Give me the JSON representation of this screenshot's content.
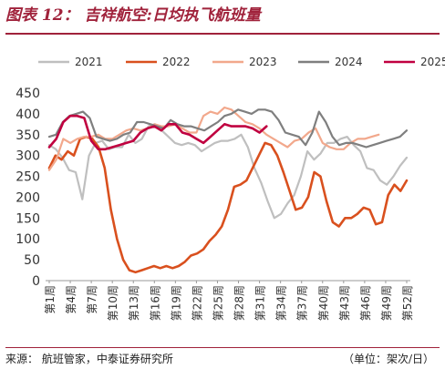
{
  "figure": {
    "title": "图表 12：  吉祥航空:日均执飞航班量",
    "source": "来源：  航班管家，中泰证券研究所",
    "unit": "（单位：架次/日）"
  },
  "colors": {
    "title": "#a0223b",
    "2021": "#bfbfbf",
    "2022": "#d9501e",
    "2023": "#f2a88c",
    "2024": "#7f7f7f",
    "2025": "#c00040"
  },
  "chart_data": {
    "type": "line",
    "x_labels": [
      "第1周",
      "第4周",
      "第7周",
      "第10周",
      "第13周",
      "第16周",
      "第19周",
      "第22周",
      "第25周",
      "第28周",
      "第31周",
      "第34周",
      "第37周",
      "第40周",
      "第43周",
      "第46周",
      "第49周",
      "第52周"
    ],
    "ylim": [
      0,
      450
    ],
    "yticks": [
      0,
      50,
      100,
      150,
      200,
      250,
      300,
      350,
      400,
      450
    ],
    "legend_position": "top",
    "series": [
      {
        "name": "2021",
        "key": "2021",
        "values": [
          325,
          315,
          295,
          265,
          260,
          195,
          300,
          330,
          335,
          315,
          320,
          320,
          350,
          330,
          340,
          370,
          375,
          360,
          345,
          330,
          325,
          330,
          325,
          310,
          320,
          330,
          335,
          335,
          340,
          350,
          320,
          270,
          235,
          190,
          150,
          160,
          185,
          205,
          250,
          310,
          290,
          305,
          330,
          330,
          340,
          345,
          325,
          310,
          270,
          265,
          240,
          230,
          250,
          275,
          295
        ]
      },
      {
        "name": "2022",
        "key": "2022",
        "values": [
          270,
          300,
          290,
          310,
          300,
          340,
          345,
          340,
          320,
          270,
          170,
          100,
          50,
          25,
          20,
          25,
          30,
          35,
          30,
          35,
          30,
          35,
          45,
          60,
          65,
          75,
          95,
          110,
          130,
          170,
          225,
          230,
          240,
          270,
          300,
          330,
          325,
          300,
          260,
          215,
          170,
          175,
          200,
          260,
          250,
          190,
          140,
          130,
          150,
          150,
          160,
          175,
          170,
          135,
          140,
          205,
          230,
          215,
          240
        ]
      },
      {
        "name": "2023",
        "key": "2023",
        "values": [
          265,
          290,
          340,
          330,
          340,
          345,
          345,
          350,
          340,
          340,
          350,
          360,
          365,
          360,
          365,
          375,
          370,
          370,
          375,
          365,
          355,
          355,
          395,
          405,
          400,
          415,
          410,
          395,
          380,
          375,
          365,
          350,
          340,
          330,
          320,
          335,
          340,
          355,
          365,
          330,
          320,
          315,
          315,
          330,
          340,
          340,
          345,
          350
        ]
      },
      {
        "name": "2024",
        "key": "2024",
        "values": [
          345,
          350,
          380,
          395,
          400,
          405,
          390,
          345,
          340,
          335,
          340,
          350,
          355,
          380,
          380,
          375,
          370,
          365,
          385,
          375,
          370,
          370,
          365,
          360,
          370,
          380,
          395,
          400,
          410,
          405,
          400,
          410,
          410,
          405,
          385,
          355,
          350,
          345,
          325,
          355,
          405,
          380,
          345,
          325,
          330,
          330,
          325,
          320,
          325,
          330,
          335,
          340,
          345,
          360
        ]
      },
      {
        "name": "2025",
        "key": "2025",
        "values": [
          320,
          340,
          380,
          395,
          395,
          390,
          335,
          315,
          315,
          320,
          325,
          330,
          335,
          355,
          365,
          370,
          360,
          375,
          375,
          355,
          350,
          340,
          330,
          345,
          360,
          375,
          370,
          370,
          370,
          365,
          355,
          370
        ]
      }
    ]
  }
}
